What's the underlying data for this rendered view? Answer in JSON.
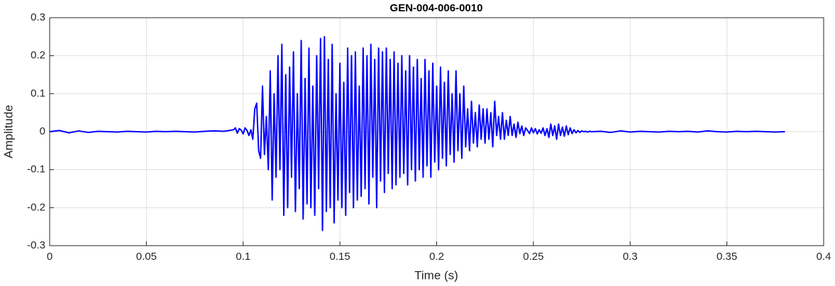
{
  "chart_data": {
    "type": "line",
    "title": "GEN-004-006-0010",
    "xlabel": "Time (s)",
    "ylabel": "Amplitude",
    "xlim": [
      0,
      0.4
    ],
    "ylim": [
      -0.3,
      0.3
    ],
    "xticks": [
      0,
      0.05,
      0.1,
      0.15,
      0.2,
      0.25,
      0.3,
      0.35,
      0.4
    ],
    "yticks": [
      -0.3,
      -0.2,
      -0.1,
      0,
      0.1,
      0.2,
      0.3
    ],
    "grid": true,
    "x": [
      0,
      0.005,
      0.01,
      0.015,
      0.02,
      0.025,
      0.03,
      0.035,
      0.04,
      0.045,
      0.05,
      0.055,
      0.06,
      0.065,
      0.07,
      0.075,
      0.08,
      0.085,
      0.09,
      0.095,
      0.096,
      0.097,
      0.098,
      0.099,
      0.1,
      0.101,
      0.102,
      0.103,
      0.104,
      0.105,
      0.106,
      0.107,
      0.108,
      0.109,
      0.11,
      0.111,
      0.112,
      0.113,
      0.114,
      0.115,
      0.116,
      0.117,
      0.118,
      0.119,
      0.12,
      0.121,
      0.122,
      0.123,
      0.124,
      0.125,
      0.126,
      0.127,
      0.128,
      0.129,
      0.13,
      0.131,
      0.132,
      0.133,
      0.134,
      0.135,
      0.136,
      0.137,
      0.138,
      0.139,
      0.14,
      0.141,
      0.142,
      0.143,
      0.144,
      0.145,
      0.146,
      0.147,
      0.148,
      0.149,
      0.15,
      0.151,
      0.152,
      0.153,
      0.154,
      0.155,
      0.156,
      0.157,
      0.158,
      0.159,
      0.16,
      0.161,
      0.162,
      0.163,
      0.164,
      0.165,
      0.166,
      0.167,
      0.168,
      0.169,
      0.17,
      0.171,
      0.172,
      0.173,
      0.174,
      0.175,
      0.176,
      0.177,
      0.178,
      0.179,
      0.18,
      0.181,
      0.182,
      0.183,
      0.184,
      0.185,
      0.186,
      0.187,
      0.188,
      0.189,
      0.19,
      0.191,
      0.192,
      0.193,
      0.194,
      0.195,
      0.196,
      0.197,
      0.198,
      0.199,
      0.2,
      0.201,
      0.202,
      0.203,
      0.204,
      0.205,
      0.206,
      0.207,
      0.208,
      0.209,
      0.21,
      0.211,
      0.212,
      0.213,
      0.214,
      0.215,
      0.216,
      0.217,
      0.218,
      0.219,
      0.22,
      0.221,
      0.222,
      0.223,
      0.224,
      0.225,
      0.226,
      0.227,
      0.228,
      0.229,
      0.23,
      0.231,
      0.232,
      0.233,
      0.234,
      0.235,
      0.236,
      0.237,
      0.238,
      0.239,
      0.24,
      0.241,
      0.242,
      0.243,
      0.244,
      0.245,
      0.246,
      0.247,
      0.248,
      0.249,
      0.25,
      0.251,
      0.252,
      0.253,
      0.254,
      0.255,
      0.256,
      0.257,
      0.258,
      0.259,
      0.26,
      0.261,
      0.262,
      0.263,
      0.264,
      0.265,
      0.266,
      0.267,
      0.268,
      0.269,
      0.27,
      0.271,
      0.272,
      0.273,
      0.274,
      0.275,
      0.276,
      0.277,
      0.278,
      0.279,
      0.28,
      0.285,
      0.29,
      0.295,
      0.3,
      0.305,
      0.31,
      0.315,
      0.32,
      0.325,
      0.33,
      0.335,
      0.34,
      0.345,
      0.35,
      0.355,
      0.36,
      0.365,
      0.37,
      0.375,
      0.38
    ],
    "series": [
      {
        "color": "#0000ff",
        "values": [
          0,
          0.003,
          -0.003,
          0.002,
          -0.002,
          0.001,
          0,
          -0.001,
          0.001,
          0,
          -0.001,
          0.001,
          0,
          0.001,
          0,
          -0.001,
          0.001,
          0.002,
          0.001,
          0.005,
          0.01,
          -0.004,
          0.008,
          0.004,
          -0.006,
          0.01,
          0.003,
          -0.01,
          0.005,
          -0.02,
          0.06,
          0.075,
          -0.05,
          -0.07,
          0.12,
          -0.06,
          0.04,
          -0.1,
          0.16,
          -0.18,
          0.1,
          -0.12,
          0.2,
          -0.1,
          0.23,
          -0.22,
          0.15,
          -0.2,
          0.17,
          -0.12,
          0.21,
          -0.21,
          0.1,
          -0.15,
          0.24,
          -0.23,
          0.14,
          -0.19,
          0.22,
          -0.2,
          0.12,
          -0.22,
          0.2,
          -0.15,
          0.245,
          -0.26,
          0.25,
          -0.21,
          0.19,
          -0.2,
          0.23,
          -0.24,
          0.1,
          -0.18,
          0.18,
          -0.2,
          0.13,
          -0.22,
          0.22,
          -0.16,
          0.2,
          -0.2,
          0.21,
          -0.18,
          0.12,
          -0.17,
          0.22,
          -0.15,
          0.2,
          -0.19,
          0.23,
          -0.12,
          0.19,
          -0.2,
          0.22,
          -0.13,
          0.21,
          -0.16,
          0.22,
          -0.11,
          0.19,
          -0.15,
          0.21,
          -0.14,
          0.18,
          -0.12,
          0.2,
          -0.11,
          0.16,
          -0.14,
          0.2,
          -0.1,
          0.17,
          -0.13,
          0.19,
          -0.1,
          0.14,
          -0.12,
          0.19,
          -0.09,
          0.16,
          -0.12,
          0.18,
          -0.08,
          0.12,
          -0.1,
          0.17,
          -0.07,
          0.13,
          -0.09,
          0.16,
          -0.06,
          0.1,
          -0.08,
          0.16,
          -0.05,
          0.1,
          -0.07,
          0.12,
          -0.04,
          0.06,
          -0.05,
          0.08,
          -0.03,
          0.05,
          -0.04,
          0.07,
          -0.02,
          0.06,
          -0.03,
          0.06,
          -0.02,
          0.05,
          -0.04,
          0.08,
          -0.01,
          0.04,
          -0.02,
          0.05,
          -0.02,
          0.03,
          -0.01,
          0.04,
          -0.01,
          0.02,
          -0.015,
          0.025,
          -0.005,
          0.015,
          -0.01,
          0.01,
          0.003,
          -0.005,
          0.01,
          -0.003,
          0.008,
          -0.006,
          0.005,
          -0.004,
          0.01,
          -0.01,
          0.008,
          -0.015,
          0.02,
          -0.01,
          0.015,
          -0.02,
          0.02,
          -0.01,
          0.012,
          -0.012,
          0.015,
          -0.008,
          0.01,
          -0.005,
          0.005,
          -0.003,
          0.003,
          -0.002,
          0.002,
          0,
          0.001,
          -0.001,
          0.001,
          0,
          0.001,
          -0.002,
          0.002,
          -0.001,
          0.001,
          0,
          -0.001,
          0.001,
          0,
          0.001,
          -0.001,
          0.002,
          0,
          -0.001,
          0.001,
          0,
          0.001,
          0,
          -0.001,
          0
        ]
      }
    ]
  }
}
